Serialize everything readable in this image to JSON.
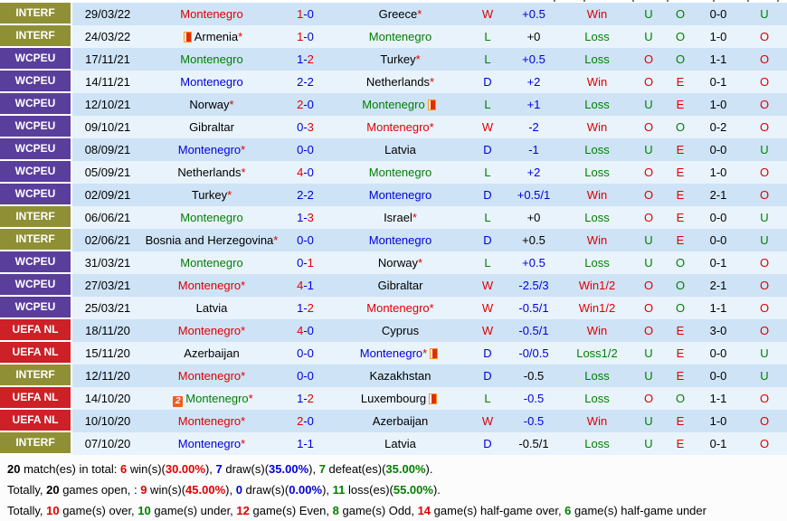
{
  "colors": {
    "red": "#e00000",
    "green": "#008000",
    "blue": "#0000dd",
    "black": "#000000",
    "text": "#000000",
    "star": "#e00000",
    "score_dash": "#0000dd",
    "row_bg_dark": "#cee3f6",
    "row_bg_light": "#e9f3fc"
  },
  "competition_colors": {
    "INTERF": "#8f9036",
    "WCPEU": "#5a3e9b",
    "UEFA NL": "#cd2027"
  },
  "color_rules": {
    "wld": {
      "W": "red",
      "D": "blue",
      "L": "green"
    },
    "result": {
      "Win": "red",
      "Win1/2": "red",
      "Loss": "green",
      "Loss1/2": "green"
    },
    "uo": {
      "U": "green",
      "O": "red"
    },
    "oe": {
      "O": "green",
      "E": "red"
    }
  },
  "icons": {
    "card": "card-icon",
    "num2_label": "2"
  },
  "top_fragments": [
    612,
    645,
    699,
    737,
    788,
    826,
    859
  ],
  "table": {
    "rows": [
      {
        "comp": "INTERF",
        "date": "29/03/22",
        "home": {
          "n": "Montenegro",
          "c": "red"
        },
        "score": {
          "h": "1",
          "a": "0",
          "hc": "red",
          "ac": "blue"
        },
        "away": {
          "n": "Greece",
          "c": "black",
          "star": true
        },
        "wld": "W",
        "hcap": {
          "t": "+0.5",
          "c": "blue"
        },
        "res": "Win",
        "uo": "U",
        "oe": "O",
        "ht": "0-0",
        "ou": "U"
      },
      {
        "comp": "INTERF",
        "date": "24/03/22",
        "home": {
          "n": "Armenia",
          "c": "black",
          "star": true,
          "icon_before": "card"
        },
        "score": {
          "h": "1",
          "a": "0",
          "hc": "red",
          "ac": "blue"
        },
        "away": {
          "n": "Montenegro",
          "c": "green"
        },
        "wld": "L",
        "hcap": {
          "t": "+0",
          "c": "black"
        },
        "res": "Loss",
        "uo": "U",
        "oe": "O",
        "ht": "1-0",
        "ou": "O"
      },
      {
        "comp": "WCPEU",
        "date": "17/11/21",
        "home": {
          "n": "Montenegro",
          "c": "green"
        },
        "score": {
          "h": "1",
          "a": "2",
          "hc": "blue",
          "ac": "red"
        },
        "away": {
          "n": "Turkey",
          "c": "black",
          "star": true
        },
        "wld": "L",
        "hcap": {
          "t": "+0.5",
          "c": "blue"
        },
        "res": "Loss",
        "uo": "O",
        "oe": "O",
        "ht": "1-1",
        "ou": "O"
      },
      {
        "comp": "WCPEU",
        "date": "14/11/21",
        "home": {
          "n": "Montenegro",
          "c": "blue"
        },
        "score": {
          "h": "2",
          "a": "2",
          "hc": "blue",
          "ac": "blue"
        },
        "away": {
          "n": "Netherlands",
          "c": "black",
          "star": true
        },
        "wld": "D",
        "hcap": {
          "t": "+2",
          "c": "blue"
        },
        "res": "Win",
        "uo": "O",
        "oe": "E",
        "ht": "0-1",
        "ou": "O"
      },
      {
        "comp": "WCPEU",
        "date": "12/10/21",
        "home": {
          "n": "Norway",
          "c": "black",
          "star": true
        },
        "score": {
          "h": "2",
          "a": "0",
          "hc": "red",
          "ac": "blue"
        },
        "away": {
          "n": "Montenegro",
          "c": "green",
          "icon_after": "card"
        },
        "wld": "L",
        "hcap": {
          "t": "+1",
          "c": "blue"
        },
        "res": "Loss",
        "uo": "U",
        "oe": "E",
        "ht": "1-0",
        "ou": "O"
      },
      {
        "comp": "WCPEU",
        "date": "09/10/21",
        "home": {
          "n": "Gibraltar",
          "c": "black"
        },
        "score": {
          "h": "0",
          "a": "3",
          "hc": "blue",
          "ac": "red"
        },
        "away": {
          "n": "Montenegro",
          "c": "red",
          "star": true
        },
        "wld": "W",
        "hcap": {
          "t": "-2",
          "c": "blue"
        },
        "res": "Win",
        "uo": "O",
        "oe": "O",
        "ht": "0-2",
        "ou": "O"
      },
      {
        "comp": "WCPEU",
        "date": "08/09/21",
        "home": {
          "n": "Montenegro",
          "c": "blue",
          "star": true
        },
        "score": {
          "h": "0",
          "a": "0",
          "hc": "blue",
          "ac": "blue"
        },
        "away": {
          "n": "Latvia",
          "c": "black"
        },
        "wld": "D",
        "hcap": {
          "t": "-1",
          "c": "blue"
        },
        "res": "Loss",
        "uo": "U",
        "oe": "E",
        "ht": "0-0",
        "ou": "U"
      },
      {
        "comp": "WCPEU",
        "date": "05/09/21",
        "home": {
          "n": "Netherlands",
          "c": "black",
          "star": true
        },
        "score": {
          "h": "4",
          "a": "0",
          "hc": "red",
          "ac": "blue"
        },
        "away": {
          "n": "Montenegro",
          "c": "green"
        },
        "wld": "L",
        "hcap": {
          "t": "+2",
          "c": "blue"
        },
        "res": "Loss",
        "uo": "O",
        "oe": "E",
        "ht": "1-0",
        "ou": "O"
      },
      {
        "comp": "WCPEU",
        "date": "02/09/21",
        "home": {
          "n": "Turkey",
          "c": "black",
          "star": true
        },
        "score": {
          "h": "2",
          "a": "2",
          "hc": "blue",
          "ac": "blue"
        },
        "away": {
          "n": "Montenegro",
          "c": "blue"
        },
        "wld": "D",
        "hcap": {
          "t": "+0.5/1",
          "c": "blue"
        },
        "res": "Win",
        "uo": "O",
        "oe": "E",
        "ht": "2-1",
        "ou": "O"
      },
      {
        "comp": "INTERF",
        "date": "06/06/21",
        "home": {
          "n": "Montenegro",
          "c": "green"
        },
        "score": {
          "h": "1",
          "a": "3",
          "hc": "blue",
          "ac": "red"
        },
        "away": {
          "n": "Israel",
          "c": "black",
          "star": true
        },
        "wld": "L",
        "hcap": {
          "t": "+0",
          "c": "black"
        },
        "res": "Loss",
        "uo": "O",
        "oe": "E",
        "ht": "0-0",
        "ou": "U"
      },
      {
        "comp": "INTERF",
        "date": "02/06/21",
        "home": {
          "n": "Bosnia and Herzegovina",
          "c": "black",
          "star": true
        },
        "score": {
          "h": "0",
          "a": "0",
          "hc": "blue",
          "ac": "blue"
        },
        "away": {
          "n": "Montenegro",
          "c": "blue"
        },
        "wld": "D",
        "hcap": {
          "t": "+0.5",
          "c": "black"
        },
        "res": "Win",
        "uo": "U",
        "oe": "E",
        "ht": "0-0",
        "ou": "U"
      },
      {
        "comp": "WCPEU",
        "date": "31/03/21",
        "home": {
          "n": "Montenegro",
          "c": "green"
        },
        "score": {
          "h": "0",
          "a": "1",
          "hc": "blue",
          "ac": "red"
        },
        "away": {
          "n": "Norway",
          "c": "black",
          "star": true
        },
        "wld": "L",
        "hcap": {
          "t": "+0.5",
          "c": "blue"
        },
        "res": "Loss",
        "uo": "U",
        "oe": "O",
        "ht": "0-1",
        "ou": "O"
      },
      {
        "comp": "WCPEU",
        "date": "27/03/21",
        "home": {
          "n": "Montenegro",
          "c": "red",
          "star": true
        },
        "score": {
          "h": "4",
          "a": "1",
          "hc": "red",
          "ac": "blue"
        },
        "away": {
          "n": "Gibraltar",
          "c": "black"
        },
        "wld": "W",
        "hcap": {
          "t": "-2.5/3",
          "c": "blue"
        },
        "res": "Win1/2",
        "uo": "O",
        "oe": "O",
        "ht": "2-1",
        "ou": "O"
      },
      {
        "comp": "WCPEU",
        "date": "25/03/21",
        "home": {
          "n": "Latvia",
          "c": "black"
        },
        "score": {
          "h": "1",
          "a": "2",
          "hc": "blue",
          "ac": "red"
        },
        "away": {
          "n": "Montenegro",
          "c": "red",
          "star": true
        },
        "wld": "W",
        "hcap": {
          "t": "-0.5/1",
          "c": "blue"
        },
        "res": "Win1/2",
        "uo": "O",
        "oe": "O",
        "ht": "1-1",
        "ou": "O"
      },
      {
        "comp": "UEFA NL",
        "date": "18/11/20",
        "home": {
          "n": "Montenegro",
          "c": "red",
          "star": true
        },
        "score": {
          "h": "4",
          "a": "0",
          "hc": "red",
          "ac": "blue"
        },
        "away": {
          "n": "Cyprus",
          "c": "black"
        },
        "wld": "W",
        "hcap": {
          "t": "-0.5/1",
          "c": "blue"
        },
        "res": "Win",
        "uo": "O",
        "oe": "E",
        "ht": "3-0",
        "ou": "O"
      },
      {
        "comp": "UEFA NL",
        "date": "15/11/20",
        "home": {
          "n": "Azerbaijan",
          "c": "black"
        },
        "score": {
          "h": "0",
          "a": "0",
          "hc": "blue",
          "ac": "blue"
        },
        "away": {
          "n": "Montenegro",
          "c": "blue",
          "star": true,
          "icon_after": "card"
        },
        "wld": "D",
        "hcap": {
          "t": "-0/0.5",
          "c": "blue"
        },
        "res": "Loss1/2",
        "uo": "U",
        "oe": "E",
        "ht": "0-0",
        "ou": "U"
      },
      {
        "comp": "INTERF",
        "date": "12/11/20",
        "home": {
          "n": "Montenegro",
          "c": "red",
          "star": true
        },
        "score": {
          "h": "0",
          "a": "0",
          "hc": "blue",
          "ac": "blue"
        },
        "away": {
          "n": "Kazakhstan",
          "c": "black"
        },
        "wld": "D",
        "hcap": {
          "t": "-0.5",
          "c": "black"
        },
        "res": "Loss",
        "uo": "U",
        "oe": "E",
        "ht": "0-0",
        "ou": "U"
      },
      {
        "comp": "UEFA NL",
        "date": "14/10/20",
        "home": {
          "n": "Montenegro",
          "c": "green",
          "star": true,
          "icon_before": "num2"
        },
        "score": {
          "h": "1",
          "a": "2",
          "hc": "blue",
          "ac": "red"
        },
        "away": {
          "n": "Luxembourg",
          "c": "black",
          "icon_after": "card"
        },
        "wld": "L",
        "hcap": {
          "t": "-0.5",
          "c": "blue"
        },
        "res": "Loss",
        "uo": "O",
        "oe": "O",
        "ht": "1-1",
        "ou": "O"
      },
      {
        "comp": "UEFA NL",
        "date": "10/10/20",
        "home": {
          "n": "Montenegro",
          "c": "red",
          "star": true
        },
        "score": {
          "h": "2",
          "a": "0",
          "hc": "red",
          "ac": "blue"
        },
        "away": {
          "n": "Azerbaijan",
          "c": "black"
        },
        "wld": "W",
        "hcap": {
          "t": "-0.5",
          "c": "blue"
        },
        "res": "Win",
        "uo": "U",
        "oe": "E",
        "ht": "1-0",
        "ou": "O"
      },
      {
        "comp": "INTERF",
        "date": "07/10/20",
        "home": {
          "n": "Montenegro",
          "c": "blue",
          "star": true
        },
        "score": {
          "h": "1",
          "a": "1",
          "hc": "blue",
          "ac": "blue"
        },
        "away": {
          "n": "Latvia",
          "c": "black"
        },
        "wld": "D",
        "hcap": {
          "t": "-0.5/1",
          "c": "black"
        },
        "res": "Loss",
        "uo": "U",
        "oe": "E",
        "ht": "0-1",
        "ou": "O"
      }
    ]
  },
  "summary": {
    "lines": [
      [
        {
          "t": "20",
          "c": "black",
          "b": true
        },
        {
          "t": " match(es) in total: ",
          "c": "text"
        },
        {
          "t": "6",
          "c": "red",
          "b": true
        },
        {
          "t": " win(s)(",
          "c": "text"
        },
        {
          "t": "30.00%",
          "c": "red",
          "b": true
        },
        {
          "t": "), ",
          "c": "text"
        },
        {
          "t": "7",
          "c": "blue",
          "b": true
        },
        {
          "t": " draw(s)(",
          "c": "text"
        },
        {
          "t": "35.00%",
          "c": "blue",
          "b": true
        },
        {
          "t": "), ",
          "c": "text"
        },
        {
          "t": "7",
          "c": "green",
          "b": true
        },
        {
          "t": " defeat(es)(",
          "c": "text"
        },
        {
          "t": "35.00%",
          "c": "green",
          "b": true
        },
        {
          "t": ").",
          "c": "text"
        }
      ],
      [
        {
          "t": "Totally, ",
          "c": "text"
        },
        {
          "t": "20",
          "c": "black",
          "b": true
        },
        {
          "t": " games open, : ",
          "c": "text"
        },
        {
          "t": "9",
          "c": "red",
          "b": true
        },
        {
          "t": " win(s)(",
          "c": "text"
        },
        {
          "t": "45.00%",
          "c": "red",
          "b": true
        },
        {
          "t": "), ",
          "c": "text"
        },
        {
          "t": "0",
          "c": "blue",
          "b": true
        },
        {
          "t": " draw(s)(",
          "c": "text"
        },
        {
          "t": "0.00%",
          "c": "blue",
          "b": true
        },
        {
          "t": "), ",
          "c": "text"
        },
        {
          "t": "11",
          "c": "green",
          "b": true
        },
        {
          "t": " loss(es)(",
          "c": "text"
        },
        {
          "t": "55.00%",
          "c": "green",
          "b": true
        },
        {
          "t": ").",
          "c": "text"
        }
      ],
      [
        {
          "t": "Totally, ",
          "c": "text"
        },
        {
          "t": "10",
          "c": "red",
          "b": true
        },
        {
          "t": " game(s) over, ",
          "c": "text"
        },
        {
          "t": "10",
          "c": "green",
          "b": true
        },
        {
          "t": " game(s) under, ",
          "c": "text"
        },
        {
          "t": "12",
          "c": "red",
          "b": true
        },
        {
          "t": " game(s) Even, ",
          "c": "text"
        },
        {
          "t": "8",
          "c": "green",
          "b": true
        },
        {
          "t": " game(s) Odd, ",
          "c": "text"
        },
        {
          "t": "14",
          "c": "red",
          "b": true
        },
        {
          "t": " game(s) half-game over, ",
          "c": "text"
        },
        {
          "t": "6",
          "c": "green",
          "b": true
        },
        {
          "t": " game(s) half-game under",
          "c": "text"
        }
      ]
    ]
  }
}
